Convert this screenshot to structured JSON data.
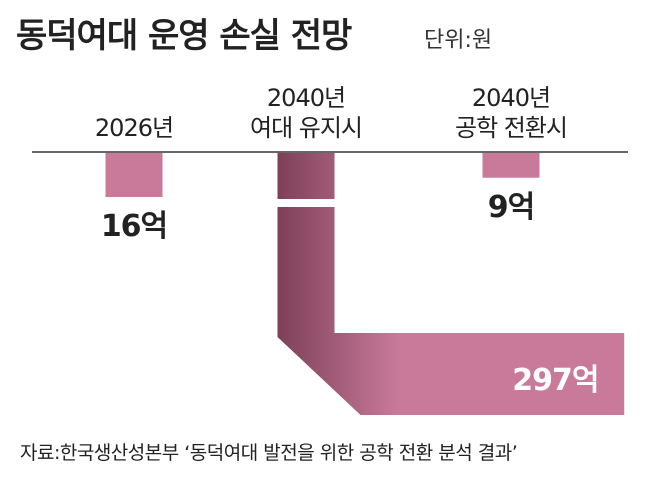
{
  "chart_data": {
    "type": "bar",
    "title": "동덕여대 운영 손실 전망",
    "subtitle": "단위:원",
    "categories": [
      "2026년",
      "2040년\n여대 유지시",
      "2040년\n공학 전환시"
    ],
    "values": [
      16,
      297,
      9
    ],
    "value_labels": [
      "16억",
      "297억",
      "9억"
    ],
    "color": "#c97a9b",
    "source": "자료:한국생산성본부 ‘동덕여대 발전을 위한 공학 전환 분석 결과’"
  }
}
